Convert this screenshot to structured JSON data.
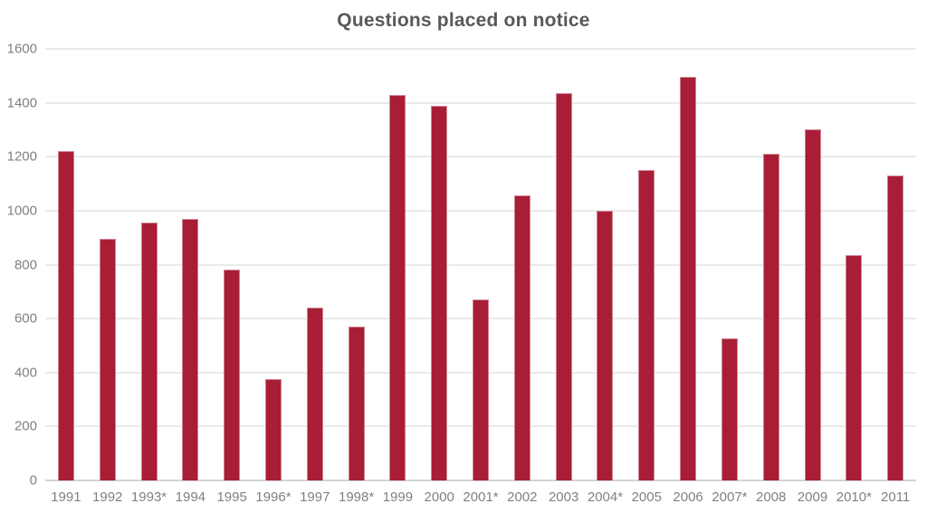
{
  "chart_data": {
    "type": "bar",
    "title": "Questions placed on notice",
    "categories": [
      "1991",
      "1992",
      "1993*",
      "1994",
      "1995",
      "1996*",
      "1997",
      "1998*",
      "1999",
      "2000",
      "2001*",
      "2002",
      "2003",
      "2004*",
      "2005",
      "2006",
      "2007*",
      "2008",
      "2009",
      "2010*",
      "2011"
    ],
    "values": [
      1220,
      895,
      955,
      970,
      780,
      375,
      640,
      570,
      1430,
      1390,
      670,
      1055,
      1435,
      1000,
      1150,
      1495,
      525,
      1210,
      1300,
      835,
      1130
    ],
    "xlabel": "",
    "ylabel": "",
    "ylim": [
      0,
      1600
    ],
    "yticks": [
      0,
      200,
      400,
      600,
      800,
      1000,
      1200,
      1400,
      1600
    ],
    "grid": true,
    "legend_position": "none"
  },
  "colors": {
    "background": "#ffffff",
    "bar_fill": "#a81e37",
    "title_text": "#595959",
    "axis_text": "#808080",
    "gridline": "#eaeaea",
    "baseline": "#d4d4d4"
  }
}
